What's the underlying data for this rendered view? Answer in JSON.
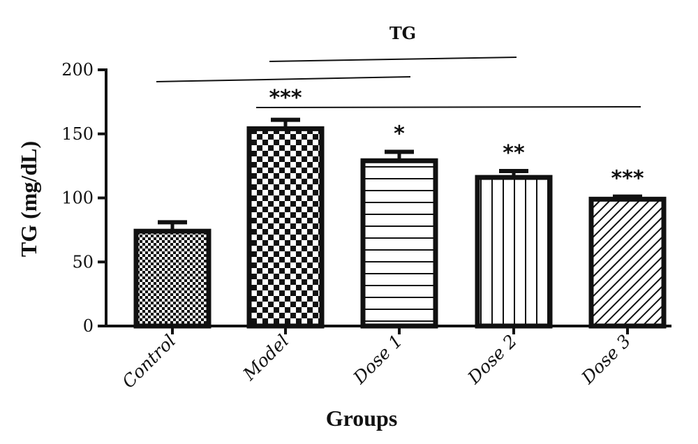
{
  "chart_data": {
    "type": "bar",
    "title": "TG",
    "xlabel": "Groups",
    "ylabel": "TG (mg/dL)",
    "ylim": [
      0,
      200
    ],
    "yticks": [
      "0",
      "50",
      "100",
      "150",
      "200"
    ],
    "categories": [
      "Control",
      "Model",
      "Dose 1",
      "Dose 2",
      "Dose 3"
    ],
    "values": [
      74,
      154,
      129,
      116,
      99
    ],
    "error_upper": [
      81,
      161,
      136,
      121,
      101
    ],
    "patterns": [
      "fine-checker",
      "coarse-checker",
      "horizontal-lines",
      "vertical-lines",
      "diagonal-lines"
    ],
    "significance_labels": [
      "",
      "***",
      "*",
      "**",
      "***"
    ],
    "comparison_lines": [
      {
        "from": "Control",
        "to": "Dose 1"
      },
      {
        "from": "Model",
        "to": "Dose 2"
      },
      {
        "from": "Model",
        "to": "Dose 3"
      }
    ],
    "grid": false,
    "legend": "none"
  }
}
